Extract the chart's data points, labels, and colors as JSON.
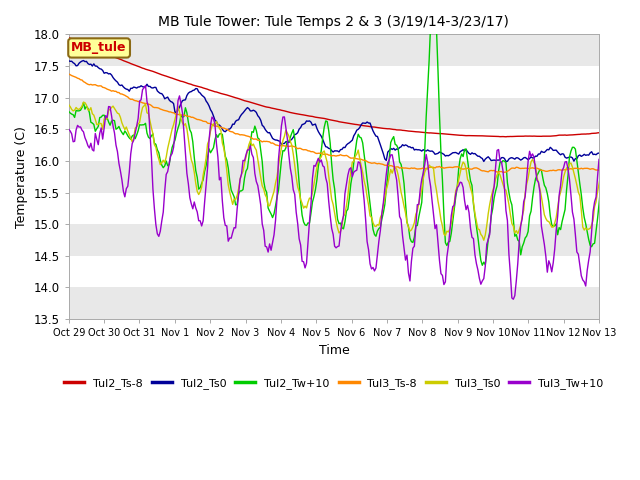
{
  "title": "MB Tule Tower: Tule Temps 2 & 3 (3/19/14-3/23/17)",
  "xlabel": "Time",
  "ylabel": "Temperature (C)",
  "ylim": [
    13.5,
    18.0
  ],
  "yticks": [
    13.5,
    14.0,
    14.5,
    15.0,
    15.5,
    16.0,
    16.5,
    17.0,
    17.5,
    18.0
  ],
  "background_color": "#ffffff",
  "plot_bg_bands": [
    {
      "ymin": 13.5,
      "ymax": 14.0,
      "color": "#e8e8e8"
    },
    {
      "ymin": 14.5,
      "ymax": 15.0,
      "color": "#e8e8e8"
    },
    {
      "ymin": 15.5,
      "ymax": 16.0,
      "color": "#e8e8e8"
    },
    {
      "ymin": 16.5,
      "ymax": 17.0,
      "color": "#e8e8e8"
    },
    {
      "ymin": 17.5,
      "ymax": 18.0,
      "color": "#e8e8e8"
    }
  ],
  "legend_label": "MB_tule",
  "legend_box_facecolor": "#ffff99",
  "legend_box_edgecolor": "#8b6914",
  "legend_box_textcolor": "#cc0000",
  "series": [
    {
      "name": "Tul2_Ts-8",
      "color": "#cc0000",
      "lw": 1.0
    },
    {
      "name": "Tul2_Ts0",
      "color": "#000099",
      "lw": 1.0
    },
    {
      "name": "Tul2_Tw+10",
      "color": "#00cc00",
      "lw": 1.0
    },
    {
      "name": "Tul3_Ts-8",
      "color": "#ff8800",
      "lw": 1.0
    },
    {
      "name": "Tul3_Ts0",
      "color": "#cccc00",
      "lw": 1.0
    },
    {
      "name": "Tul3_Tw+10",
      "color": "#9900cc",
      "lw": 1.0
    }
  ],
  "n_days": 16,
  "pts_per_day": 24,
  "start_date": "Oct 29",
  "xtick_labels": [
    "Oct 29",
    "Oct 30",
    "Oct 31",
    "Nov 1",
    "Nov 2",
    "Nov 3",
    "Nov 4",
    "Nov 5",
    "Nov 6",
    "Nov 7",
    "Nov 8",
    "Nov 9",
    "Nov 10",
    "Nov 11",
    "Nov 12",
    "Nov 13"
  ],
  "figsize": [
    6.4,
    4.8
  ],
  "dpi": 100
}
